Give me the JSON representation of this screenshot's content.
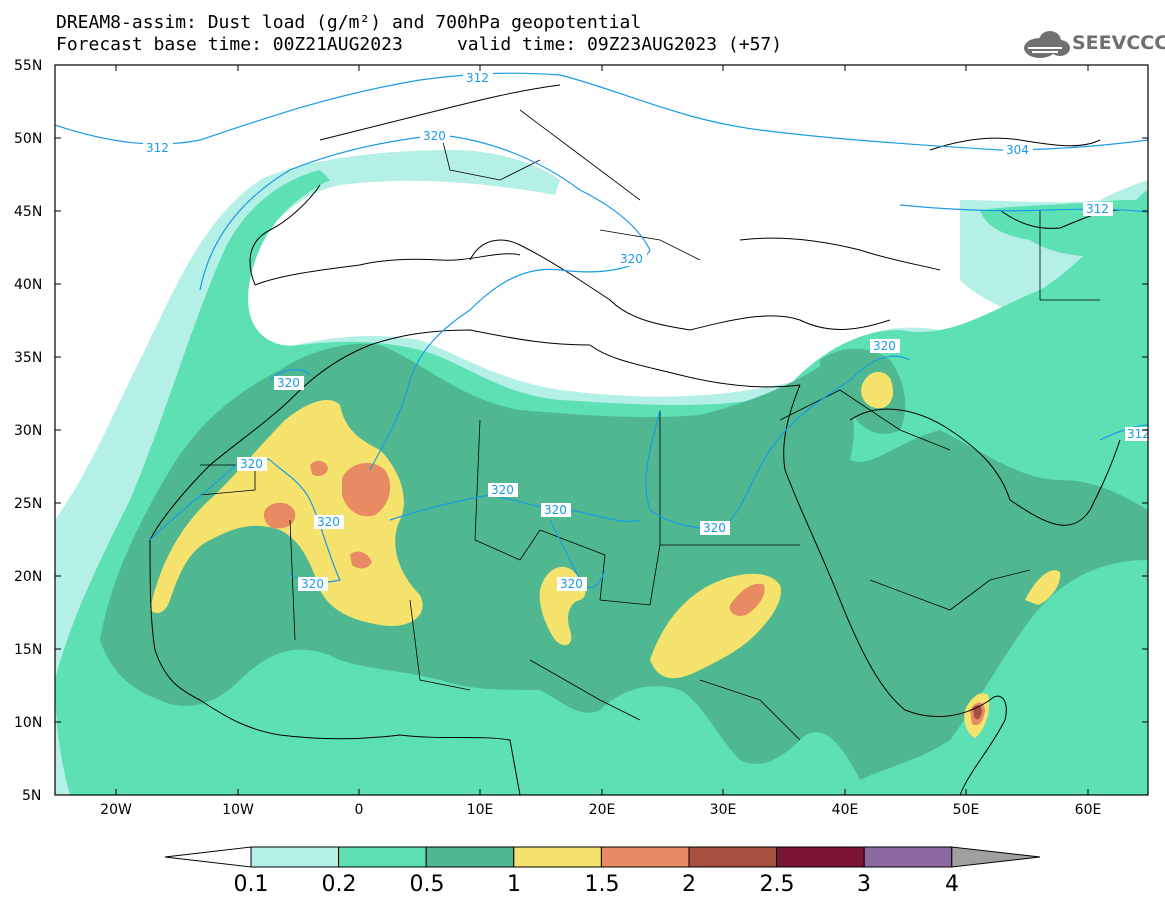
{
  "title": {
    "line1": "DREAM8-assim: Dust load (g/m²) and 700hPa geopotential",
    "line2": "Forecast base time: 00Z21AUG2023     valid time: 09Z23AUG2023 (+57)"
  },
  "logo": {
    "text": "SEEVCCC",
    "icon": "cloud-icon"
  },
  "map": {
    "lat_labels": [
      "55N",
      "50N",
      "45N",
      "40N",
      "35N",
      "30N",
      "25N",
      "20N",
      "15N",
      "10N",
      "5N"
    ],
    "lon_labels": [
      "20W",
      "10W",
      "0",
      "10E",
      "20E",
      "30E",
      "40E",
      "50E",
      "60E"
    ],
    "contour_labels": [
      "312",
      "312",
      "320",
      "320",
      "304",
      "312",
      "320",
      "320",
      "320",
      "320",
      "320",
      "320",
      "320",
      "312"
    ]
  },
  "colorbar": {
    "ticks": [
      "0.1",
      "0.2",
      "0.5",
      "1",
      "1.5",
      "2",
      "2.5",
      "3",
      "4"
    ],
    "colors": [
      "#ffffff",
      "#b4f0e6",
      "#5ce0b4",
      "#4fb891",
      "#f5e36e",
      "#e88a62",
      "#a85040",
      "#7a1432",
      "#8a6aa0",
      "#a0a0a0"
    ]
  }
}
